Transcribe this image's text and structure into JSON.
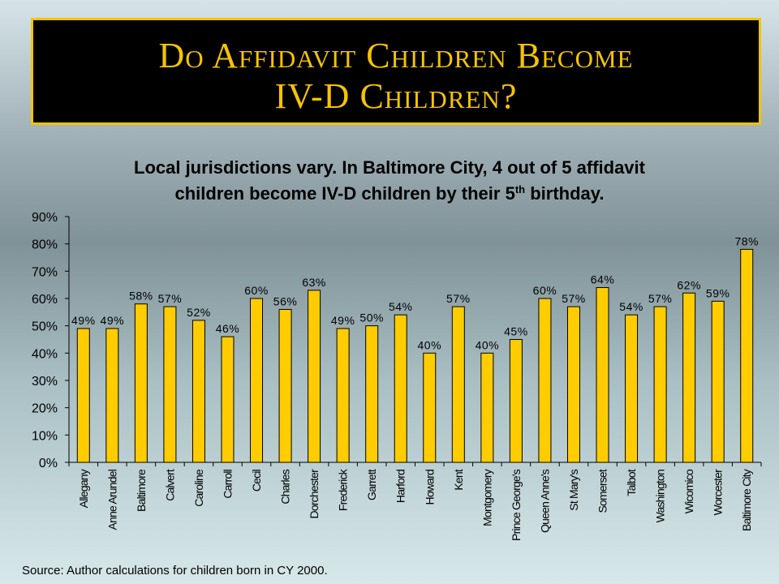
{
  "slide": {
    "title_line1": "Do Affidavit Children Become",
    "title_line2": "IV-D Children?",
    "subtitle_line1": "Local jurisdictions vary.  In Baltimore City, 4 out of 5 affidavit",
    "subtitle_line2_pre": "children become IV-D children by their 5",
    "subtitle_line2_sup": "th",
    "subtitle_line2_post": " birthday.",
    "source": "Source: Author calculations for children born in CY 2000."
  },
  "colors": {
    "bar_fill": "#ffcc00",
    "bar_stroke": "#000000",
    "title_text": "#f5c400",
    "title_border": "#f5c400"
  },
  "chart_data": {
    "type": "bar",
    "title": "",
    "xlabel": "",
    "ylabel": "",
    "ylim": [
      0,
      90
    ],
    "yticks": [
      "0%",
      "10%",
      "20%",
      "30%",
      "40%",
      "50%",
      "60%",
      "70%",
      "80%",
      "90%"
    ],
    "grid": false,
    "categories": [
      "Allegany",
      "Anne Arundel",
      "Baltimore",
      "Calvert",
      "Caroline",
      "Carroll",
      "Cecil",
      "Charles",
      "Dorchester",
      "Frederick",
      "Garrett",
      "Harford",
      "Howard",
      "Kent",
      "Montgomery",
      "Prince George's",
      "Queen Anne's",
      "St Mary's",
      "Somerset",
      "Talbot",
      "Washington",
      "Wicomico",
      "Worcester",
      "Baltimore City"
    ],
    "values": [
      49,
      49,
      58,
      57,
      52,
      46,
      60,
      56,
      63,
      49,
      50,
      54,
      40,
      57,
      40,
      45,
      60,
      57,
      64,
      54,
      57,
      62,
      59,
      78
    ],
    "data_labels": [
      "49%",
      "49%",
      "58%",
      "57%",
      "52%",
      "46%",
      "60%",
      "56%",
      "63%",
      "49%",
      "50%",
      "54%",
      "40%",
      "57%",
      "40%",
      "45%",
      "60%",
      "57%",
      "64%",
      "54%",
      "57%",
      "62%",
      "59%",
      "78%"
    ]
  }
}
